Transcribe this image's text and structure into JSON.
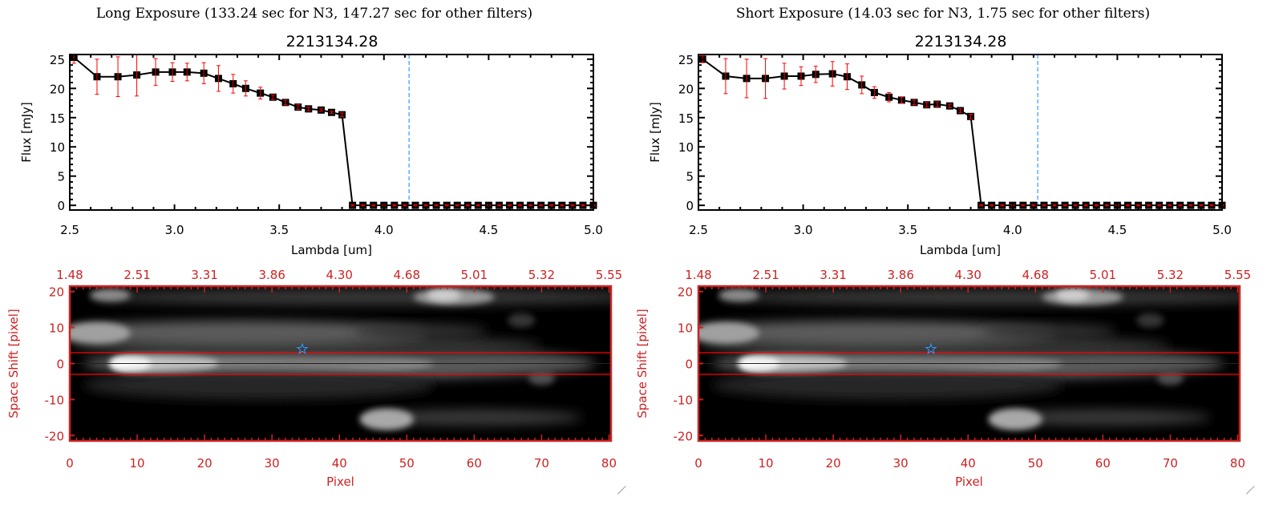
{
  "panels": [
    {
      "title": "Long Exposure (133.24 sec for N3, 147.27 sec for other filters)",
      "object_id": "2213134.28"
    },
    {
      "title": "Short Exposure (14.03 sec for N3, 1.75 sec for other filters)",
      "object_id": "2213134.28"
    }
  ],
  "colors": {
    "data": "#000000",
    "errors": "#ff0000",
    "marker_line": "#3399ff",
    "image_axes": "#cc2222",
    "aperture": "#ff0000",
    "star": "#3399ff"
  },
  "chart_data": [
    {
      "type": "line",
      "panel": "long",
      "xlabel": "Lambda [um]",
      "ylabel": "Flux [mJy]",
      "xlim": [
        2.5,
        5.0
      ],
      "ylim": [
        -0.8,
        25.8
      ],
      "xticks": [
        "2.5",
        "3.0",
        "3.5",
        "4.0",
        "4.5",
        "5.0"
      ],
      "yticks": [
        "0",
        "5",
        "10",
        "15",
        "20",
        "25"
      ],
      "vline": 4.12,
      "x": [
        2.52,
        2.63,
        2.73,
        2.82,
        2.91,
        2.99,
        3.06,
        3.14,
        3.21,
        3.28,
        3.34,
        3.41,
        3.47,
        3.53,
        3.59,
        3.64,
        3.7,
        3.75,
        3.8,
        3.85,
        3.9,
        3.95,
        4.0,
        4.05,
        4.1,
        4.15,
        4.2,
        4.25,
        4.3,
        4.35,
        4.4,
        4.45,
        4.5,
        4.55,
        4.6,
        4.65,
        4.7,
        4.75,
        4.8,
        4.85,
        4.9,
        4.95,
        5.0
      ],
      "y": [
        25.3,
        22.0,
        22.0,
        22.3,
        22.8,
        22.8,
        22.8,
        22.6,
        21.7,
        20.8,
        20.0,
        19.2,
        18.5,
        17.6,
        16.8,
        16.5,
        16.3,
        15.9,
        15.5,
        0,
        0,
        0,
        0,
        0,
        0,
        0,
        0,
        0,
        0,
        0,
        0,
        0,
        0,
        0,
        0,
        0,
        0,
        0,
        0,
        0,
        0,
        0,
        0
      ],
      "yerr": [
        1.0,
        3.0,
        3.4,
        3.6,
        2.3,
        1.6,
        1.5,
        1.8,
        2.2,
        1.6,
        1.3,
        1.0,
        0.4,
        0.4,
        0.4,
        0.3,
        0.2,
        0.2,
        0.3,
        0.1,
        0.1,
        0.1,
        0.1,
        0.1,
        0.1,
        0.1,
        0.1,
        0.1,
        0.1,
        0.1,
        0.1,
        0.1,
        0.1,
        0.1,
        0.1,
        0.1,
        0.1,
        0.1,
        0.1,
        0.1,
        0.1,
        0.1,
        0.1
      ]
    },
    {
      "type": "heatmap",
      "panel": "long",
      "xlabel": "Pixel",
      "ylabel": "Space Shift [pixel]",
      "xlim": [
        0,
        80.3
      ],
      "ylim": [
        -21.5,
        21.5
      ],
      "xticks": [
        "0",
        "10",
        "20",
        "30",
        "40",
        "50",
        "60",
        "70",
        "80"
      ],
      "yticks": [
        "-20",
        "-10",
        "0",
        "10",
        "20"
      ],
      "top_xticks": [
        "1.48",
        "2.51",
        "3.31",
        "3.86",
        "4.30",
        "4.68",
        "5.01",
        "5.32",
        "5.55"
      ],
      "aperture": [
        -3,
        3
      ],
      "source_marker": [
        34.5,
        4
      ]
    },
    {
      "type": "line",
      "panel": "short",
      "xlabel": "Lambda [um]",
      "ylabel": "Flux [mJy]",
      "xlim": [
        2.5,
        5.0
      ],
      "ylim": [
        -0.8,
        25.8
      ],
      "xticks": [
        "2.5",
        "3.0",
        "3.5",
        "4.0",
        "4.5",
        "5.0"
      ],
      "yticks": [
        "0",
        "5",
        "10",
        "15",
        "20",
        "25"
      ],
      "vline": 4.12,
      "x": [
        2.52,
        2.63,
        2.73,
        2.82,
        2.91,
        2.99,
        3.06,
        3.14,
        3.21,
        3.28,
        3.34,
        3.41,
        3.47,
        3.53,
        3.59,
        3.64,
        3.7,
        3.75,
        3.8,
        3.85,
        3.9,
        3.95,
        4.0,
        4.05,
        4.1,
        4.15,
        4.2,
        4.25,
        4.3,
        4.35,
        4.4,
        4.45,
        4.5,
        4.55,
        4.6,
        4.65,
        4.7,
        4.75,
        4.8,
        4.85,
        4.9,
        4.95,
        5.0
      ],
      "y": [
        25.0,
        22.1,
        21.7,
        21.7,
        22.1,
        22.1,
        22.4,
        22.5,
        22.0,
        20.6,
        19.3,
        18.5,
        18.0,
        17.6,
        17.2,
        17.3,
        17.0,
        16.2,
        15.2,
        0,
        0,
        0,
        0,
        0,
        0,
        0,
        0,
        0,
        0,
        0,
        0,
        0,
        0,
        0,
        0,
        0,
        0,
        0,
        0,
        0,
        0,
        0,
        0
      ],
      "yerr": [
        0.6,
        3.0,
        3.3,
        3.4,
        2.2,
        1.6,
        1.4,
        2.1,
        2.2,
        1.5,
        1.0,
        0.8,
        0.5,
        0.4,
        0.4,
        0.4,
        0.3,
        0.3,
        0.4,
        0.1,
        0.1,
        0.1,
        0.1,
        0.1,
        0.1,
        0.1,
        0.1,
        0.1,
        0.1,
        0.1,
        0.1,
        0.1,
        0.1,
        0.1,
        0.1,
        0.1,
        0.1,
        0.1,
        0.1,
        0.1,
        0.1,
        0.1,
        0.1
      ]
    },
    {
      "type": "heatmap",
      "panel": "short",
      "xlabel": "Pixel",
      "ylabel": "Space Shift [pixel]",
      "xlim": [
        0,
        80.3
      ],
      "ylim": [
        -21.5,
        21.5
      ],
      "xticks": [
        "0",
        "10",
        "20",
        "30",
        "40",
        "50",
        "60",
        "70",
        "80"
      ],
      "yticks": [
        "-20",
        "-10",
        "0",
        "10",
        "20"
      ],
      "top_xticks": [
        "1.48",
        "2.51",
        "3.31",
        "3.86",
        "4.30",
        "4.68",
        "5.01",
        "5.32",
        "5.55"
      ],
      "aperture": [
        -3,
        3
      ],
      "source_marker": [
        34.5,
        4
      ]
    }
  ]
}
